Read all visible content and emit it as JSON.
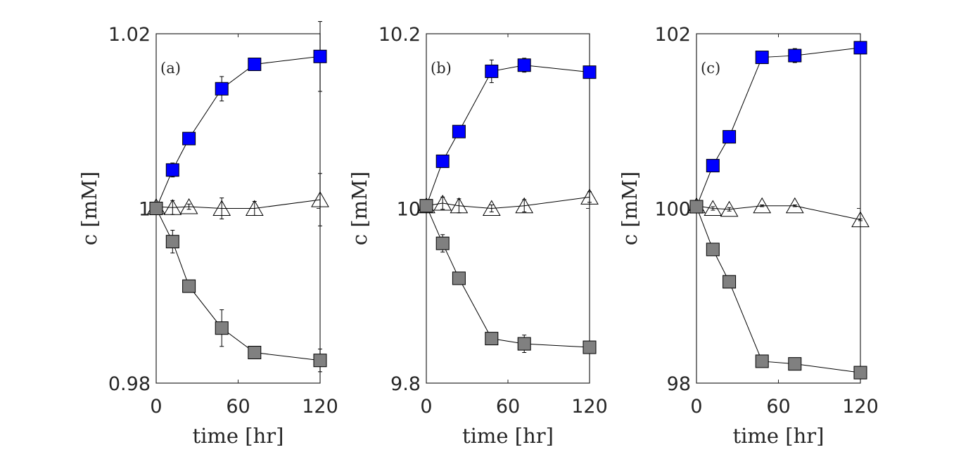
{
  "chart_data": [
    {
      "type": "line",
      "panel_label": "(a)",
      "xlabel": "time [hr]",
      "ylabel": "c [mM]",
      "xlim": [
        0,
        120
      ],
      "ylim": [
        0.98,
        1.02
      ],
      "xticks": [
        0,
        60,
        120
      ],
      "xtick_labels": [
        "0",
        "60",
        "120"
      ],
      "yticks": [
        0.98,
        1,
        1.02
      ],
      "ytick_labels": [
        "0.98",
        "1",
        "1.02"
      ],
      "x": [
        0,
        12,
        24,
        48,
        72,
        120
      ],
      "series": [
        {
          "name": "blue squares",
          "marker": "square",
          "color": "#0000ff",
          "values": [
            1.0,
            1.0044,
            1.008,
            1.0137,
            1.0165,
            1.0174
          ],
          "errors": [
            0,
            0.0008,
            0.0006,
            0.0014,
            0.0006,
            0.004
          ]
        },
        {
          "name": "open triangles",
          "marker": "triangle",
          "color": "#ffffff",
          "values": [
            1.0002,
            1.0001,
            1.0002,
            1.0,
            1.0,
            1.001
          ],
          "errors": [
            0,
            0.0008,
            0.0003,
            0.0012,
            0.0008,
            0.003
          ]
        },
        {
          "name": "gray squares",
          "marker": "square",
          "color": "#808080",
          "values": [
            1.0,
            0.9962,
            0.9911,
            0.9863,
            0.9835,
            0.9826
          ],
          "errors": [
            0,
            0.0013,
            0.0004,
            0.0021,
            0.0005,
            0.0013
          ]
        }
      ]
    },
    {
      "type": "line",
      "panel_label": "(b)",
      "xlabel": "time [hr]",
      "ylabel": "c [mM]",
      "xlim": [
        0,
        120
      ],
      "ylim": [
        9.8,
        10.2
      ],
      "xticks": [
        0,
        60,
        120
      ],
      "xtick_labels": [
        "0",
        "60",
        "120"
      ],
      "yticks": [
        9.8,
        10,
        10.2
      ],
      "ytick_labels": [
        "9.8",
        "10",
        "10.2"
      ],
      "x": [
        0,
        12,
        24,
        48,
        72,
        120
      ],
      "series": [
        {
          "name": "blue squares",
          "marker": "square",
          "color": "#0000ff",
          "values": [
            10.003,
            10.054,
            10.088,
            10.157,
            10.164,
            10.156
          ],
          "errors": [
            0,
            0.003,
            0.004,
            0.013,
            0.008,
            0.004
          ]
        },
        {
          "name": "open triangles",
          "marker": "triangle",
          "color": "#ffffff",
          "values": [
            10.003,
            10.006,
            10.003,
            10.0,
            10.003,
            10.013
          ],
          "errors": [
            0,
            0.007,
            0.008,
            0.004,
            0.007,
            0.006
          ]
        },
        {
          "name": "gray squares",
          "marker": "square",
          "color": "#808080",
          "values": [
            10.003,
            9.96,
            9.92,
            9.851,
            9.845,
            9.841
          ],
          "errors": [
            0,
            0.01,
            0.003,
            0.004,
            0.01,
            0.005
          ]
        }
      ]
    },
    {
      "type": "line",
      "panel_label": "(c)",
      "xlabel": "time [hr]",
      "ylabel": "c [mM]",
      "xlim": [
        0,
        120
      ],
      "ylim": [
        98,
        102
      ],
      "xticks": [
        0,
        60,
        120
      ],
      "xtick_labels": [
        "0",
        "60",
        "120"
      ],
      "yticks": [
        98,
        100,
        102
      ],
      "ytick_labels": [
        "98",
        "100",
        "102"
      ],
      "x": [
        0,
        12,
        24,
        48,
        72,
        120
      ],
      "series": [
        {
          "name": "blue squares",
          "marker": "square",
          "color": "#0000ff",
          "values": [
            100.02,
            100.49,
            100.82,
            101.73,
            101.75,
            101.84
          ],
          "errors": [
            0,
            0.01,
            0.01,
            0.03,
            0.08,
            0.04
          ]
        },
        {
          "name": "open triangles",
          "marker": "triangle",
          "color": "#ffffff",
          "values": [
            100.03,
            100.0,
            99.99,
            100.03,
            100.03,
            99.87
          ],
          "errors": [
            0,
            0.02,
            0.02,
            0.01,
            0.01,
            0.01
          ]
        },
        {
          "name": "gray squares",
          "marker": "square",
          "color": "#808080",
          "values": [
            100.02,
            99.53,
            99.16,
            98.25,
            98.22,
            98.12
          ],
          "errors": [
            0,
            0.01,
            0.03,
            0.04,
            0.02,
            0.01
          ]
        }
      ]
    }
  ]
}
